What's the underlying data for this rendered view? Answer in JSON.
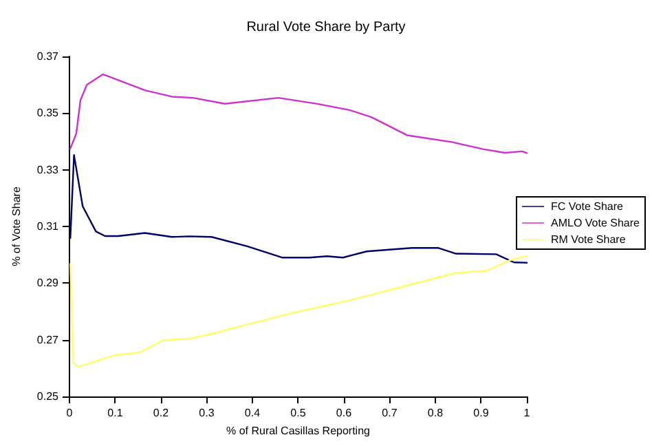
{
  "chart_data": {
    "type": "line",
    "title": "Rural Vote Share by Party",
    "xlabel": "% of Rural Casillas Reporting",
    "ylabel": "% of Vote Share",
    "xlim": [
      0,
      1
    ],
    "xticks": [
      0,
      0.1,
      0.2,
      0.3,
      0.4,
      0.5,
      0.6,
      0.7,
      0.8,
      0.9,
      1
    ],
    "ylim": [
      0.25,
      0.37
    ],
    "yticks": [
      0.25,
      0.27,
      0.29,
      0.31,
      0.33,
      0.35,
      0.37
    ],
    "grid": false,
    "legend": "right",
    "marker": "none",
    "line_style": "solid",
    "series": [
      {
        "name": "FC Vote Share",
        "color": "#000066",
        "x": [
          0.002,
          0.01,
          0.029,
          0.058,
          0.078,
          0.107,
          0.165,
          0.224,
          0.262,
          0.311,
          0.389,
          0.466,
          0.525,
          0.563,
          0.598,
          0.65,
          0.748,
          0.807,
          0.845,
          0.933,
          0.972,
          1.0
        ],
        "values": [
          0.3059,
          0.3352,
          0.3171,
          0.3082,
          0.3066,
          0.3066,
          0.3077,
          0.3063,
          0.3065,
          0.3063,
          0.303,
          0.299,
          0.299,
          0.2995,
          0.299,
          0.3012,
          0.3024,
          0.3024,
          0.3004,
          0.3002,
          0.2973,
          0.2972
        ]
      },
      {
        "name": "AMLO Vote Share",
        "color": "#cc33cc",
        "x": [
          0.002,
          0.015,
          0.024,
          0.038,
          0.073,
          0.166,
          0.224,
          0.27,
          0.34,
          0.457,
          0.544,
          0.612,
          0.66,
          0.738,
          0.836,
          0.904,
          0.952,
          0.99,
          1.0
        ],
        "values": [
          0.3375,
          0.3428,
          0.3545,
          0.36,
          0.3637,
          0.358,
          0.3558,
          0.3554,
          0.3533,
          0.3554,
          0.3532,
          0.3511,
          0.3486,
          0.3422,
          0.3398,
          0.3373,
          0.336,
          0.3365,
          0.3359
        ]
      },
      {
        "name": "RM Vote Share",
        "color": "#ffff66",
        "x": [
          0.002,
          0.008,
          0.019,
          0.049,
          0.097,
          0.155,
          0.204,
          0.262,
          0.311,
          0.398,
          0.486,
          0.612,
          0.651,
          0.748,
          0.845,
          0.913,
          0.962,
          1.0
        ],
        "values": [
          0.2968,
          0.262,
          0.2604,
          0.262,
          0.2645,
          0.2656,
          0.2698,
          0.2704,
          0.2721,
          0.2758,
          0.2794,
          0.2839,
          0.2855,
          0.2896,
          0.2936,
          0.2944,
          0.298,
          0.2996
        ]
      }
    ]
  }
}
